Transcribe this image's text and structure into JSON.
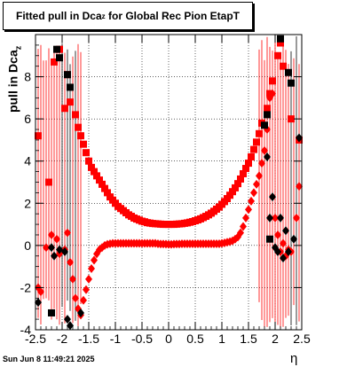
{
  "title_main": "Fitted pull in Dca",
  "title_sub": "z",
  "title_rest": "for Global Rec Pion EtapT",
  "ylabel_main": "pull in Dca",
  "ylabel_sub": "z",
  "xlabel": "η",
  "timestamp": "Sun Jun  8 11:49:21 2025",
  "colors": {
    "red": "#ff0000",
    "black": "#000000",
    "grid": "#000000"
  },
  "chart_data": {
    "type": "scatter",
    "xlim": [
      -2.5,
      2.5
    ],
    "ylim": [
      -4,
      10
    ],
    "grid": true,
    "xticks": [
      -2.5,
      -2,
      -1.5,
      -1,
      -0.5,
      0,
      0.5,
      1,
      1.5,
      2,
      2.5
    ],
    "xtick_labels": [
      "-2.5",
      "-2",
      "-1.5",
      "-1",
      "-0.5",
      "0",
      "0.5",
      "1",
      "1.5",
      "2",
      "2.5"
    ],
    "yticks": [
      -4,
      -2,
      0,
      2,
      4,
      6,
      8
    ],
    "ytick_labels": [
      "-4",
      "-2",
      "0",
      "2",
      "4",
      "6",
      "8"
    ],
    "series": [
      {
        "marker": "square",
        "color": "#ff0000",
        "points": [
          [
            -2.45,
            5.2
          ],
          [
            -2.25,
            3.0
          ],
          [
            -2.15,
            8.7
          ],
          [
            -2.05,
            9.3
          ],
          [
            -1.95,
            6.5
          ],
          [
            -1.9,
            8.1
          ],
          [
            -1.85,
            6.8
          ],
          [
            -1.75,
            6.2
          ],
          [
            -1.7,
            5.6
          ],
          [
            -1.65,
            5.2
          ],
          [
            -1.6,
            4.8
          ],
          [
            -1.55,
            4.4
          ],
          [
            -1.5,
            4.0
          ],
          [
            -1.45,
            3.7
          ],
          [
            -1.4,
            3.5
          ],
          [
            -1.35,
            3.3
          ],
          [
            -1.3,
            3.1
          ],
          [
            -1.25,
            2.9
          ],
          [
            -1.2,
            2.7
          ],
          [
            -1.15,
            2.5
          ],
          [
            -1.1,
            2.3
          ],
          [
            -1.05,
            2.15
          ],
          [
            -1.0,
            2.0
          ],
          [
            -0.95,
            1.85
          ],
          [
            -0.9,
            1.75
          ],
          [
            -0.85,
            1.65
          ],
          [
            -0.8,
            1.55
          ],
          [
            -0.75,
            1.45
          ],
          [
            -0.7,
            1.38
          ],
          [
            -0.65,
            1.3
          ],
          [
            -0.6,
            1.25
          ],
          [
            -0.55,
            1.2
          ],
          [
            -0.5,
            1.15
          ],
          [
            -0.45,
            1.12
          ],
          [
            -0.4,
            1.08
          ],
          [
            -0.35,
            1.06
          ],
          [
            -0.3,
            1.04
          ],
          [
            -0.25,
            1.03
          ],
          [
            -0.2,
            1.02
          ],
          [
            -0.15,
            1.01
          ],
          [
            -0.1,
            1.0
          ],
          [
            -0.05,
            1.0
          ],
          [
            0.0,
            1.0
          ],
          [
            0.05,
            1.0
          ],
          [
            0.1,
            1.0
          ],
          [
            0.15,
            1.01
          ],
          [
            0.2,
            1.02
          ],
          [
            0.25,
            1.03
          ],
          [
            0.3,
            1.05
          ],
          [
            0.35,
            1.07
          ],
          [
            0.4,
            1.1
          ],
          [
            0.45,
            1.13
          ],
          [
            0.5,
            1.17
          ],
          [
            0.55,
            1.21
          ],
          [
            0.6,
            1.26
          ],
          [
            0.65,
            1.32
          ],
          [
            0.7,
            1.38
          ],
          [
            0.75,
            1.45
          ],
          [
            0.8,
            1.53
          ],
          [
            0.85,
            1.62
          ],
          [
            0.9,
            1.72
          ],
          [
            0.95,
            1.82
          ],
          [
            1.0,
            1.95
          ],
          [
            1.05,
            2.08
          ],
          [
            1.1,
            2.22
          ],
          [
            1.15,
            2.38
          ],
          [
            1.2,
            2.55
          ],
          [
            1.25,
            2.73
          ],
          [
            1.3,
            2.93
          ],
          [
            1.35,
            3.15
          ],
          [
            1.4,
            3.4
          ],
          [
            1.45,
            3.65
          ],
          [
            1.5,
            3.9
          ],
          [
            1.55,
            4.2
          ],
          [
            1.6,
            4.55
          ],
          [
            1.65,
            4.9
          ],
          [
            1.7,
            5.3
          ],
          [
            1.75,
            5.8
          ],
          [
            1.85,
            6.5
          ],
          [
            1.9,
            7.2
          ],
          [
            1.95,
            7.8
          ],
          [
            2.05,
            9.0
          ],
          [
            2.1,
            9.6
          ],
          [
            2.15,
            8.5
          ],
          [
            2.3,
            6.0
          ],
          [
            2.45,
            5.0
          ]
        ]
      },
      {
        "marker": "diamond",
        "color": "#ff0000",
        "points": [
          [
            -2.45,
            -2.0
          ],
          [
            -2.4,
            -2.2
          ],
          [
            -2.3,
            -0.1
          ],
          [
            -2.2,
            0.5
          ],
          [
            -2.1,
            0.3
          ],
          [
            -2.05,
            -0.4
          ],
          [
            -1.95,
            -0.2
          ],
          [
            -1.9,
            0.6
          ],
          [
            -1.85,
            -0.8
          ],
          [
            -1.8,
            -1.6
          ],
          [
            -1.75,
            -2.5
          ],
          [
            -1.7,
            -3.0
          ],
          [
            -1.65,
            -3.3
          ],
          [
            -1.6,
            -2.6
          ],
          [
            -1.55,
            -2.1
          ],
          [
            -1.5,
            -1.6
          ],
          [
            -1.45,
            -1.1
          ],
          [
            -1.4,
            -0.7
          ],
          [
            -1.35,
            -0.4
          ],
          [
            -1.3,
            -0.2
          ],
          [
            -1.25,
            -0.1
          ],
          [
            -1.2,
            0.0
          ],
          [
            -1.15,
            0.05
          ],
          [
            -1.1,
            0.08
          ],
          [
            -1.05,
            0.1
          ],
          [
            -1.0,
            0.1
          ],
          [
            -0.95,
            0.1
          ],
          [
            -0.9,
            0.1
          ],
          [
            -0.85,
            0.1
          ],
          [
            -0.8,
            0.1
          ],
          [
            -0.75,
            0.1
          ],
          [
            -0.7,
            0.1
          ],
          [
            -0.65,
            0.1
          ],
          [
            -0.6,
            0.1
          ],
          [
            -0.55,
            0.1
          ],
          [
            -0.5,
            0.1
          ],
          [
            -0.45,
            0.1
          ],
          [
            -0.4,
            0.1
          ],
          [
            -0.35,
            0.1
          ],
          [
            -0.3,
            0.1
          ],
          [
            -0.25,
            0.1
          ],
          [
            -0.2,
            0.08
          ],
          [
            -0.15,
            0.07
          ],
          [
            -0.1,
            0.07
          ],
          [
            -0.05,
            0.06
          ],
          [
            0.0,
            0.05
          ],
          [
            0.05,
            0.05
          ],
          [
            0.1,
            0.06
          ],
          [
            0.15,
            0.07
          ],
          [
            0.2,
            0.07
          ],
          [
            0.25,
            0.08
          ],
          [
            0.3,
            0.08
          ],
          [
            0.35,
            0.08
          ],
          [
            0.4,
            0.08
          ],
          [
            0.45,
            0.08
          ],
          [
            0.5,
            0.08
          ],
          [
            0.55,
            0.08
          ],
          [
            0.6,
            0.08
          ],
          [
            0.65,
            0.08
          ],
          [
            0.7,
            0.08
          ],
          [
            0.75,
            0.08
          ],
          [
            0.8,
            0.08
          ],
          [
            0.85,
            0.08
          ],
          [
            0.9,
            0.08
          ],
          [
            0.95,
            0.08
          ],
          [
            1.0,
            0.1
          ],
          [
            1.05,
            0.12
          ],
          [
            1.1,
            0.15
          ],
          [
            1.15,
            0.18
          ],
          [
            1.2,
            0.22
          ],
          [
            1.25,
            0.3
          ],
          [
            1.3,
            0.4
          ],
          [
            1.35,
            0.6
          ],
          [
            1.4,
            0.9
          ],
          [
            1.45,
            1.3
          ],
          [
            1.5,
            1.7
          ],
          [
            1.55,
            2.1
          ],
          [
            1.6,
            2.5
          ],
          [
            1.65,
            2.9
          ],
          [
            1.7,
            3.3
          ],
          [
            1.75,
            3.9
          ],
          [
            1.8,
            4.5
          ],
          [
            1.85,
            5.5
          ],
          [
            1.9,
            7.0
          ],
          [
            1.95,
            7.2
          ],
          [
            2.0,
            1.3
          ],
          [
            2.05,
            0.5
          ],
          [
            2.1,
            -0.3
          ],
          [
            2.15,
            0.1
          ],
          [
            2.2,
            -0.5
          ],
          [
            2.25,
            -0.2
          ],
          [
            2.3,
            -0.3
          ],
          [
            2.4,
            1.3
          ],
          [
            2.45,
            2.8
          ]
        ]
      },
      {
        "marker": "square",
        "color": "#000000",
        "points": [
          [
            -2.2,
            -3.2
          ],
          [
            -2.1,
            9.3
          ],
          [
            -2.05,
            8.9
          ],
          [
            -1.9,
            8.1
          ],
          [
            -1.85,
            7.5
          ],
          [
            1.8,
            5.7
          ],
          [
            1.85,
            6.2
          ],
          [
            2.1,
            9.8
          ],
          [
            2.25,
            8.2
          ],
          [
            2.3,
            7.7
          ],
          [
            1.9,
            0.3
          ]
        ]
      },
      {
        "marker": "diamond",
        "color": "#000000",
        "points": [
          [
            -2.45,
            -2.7
          ],
          [
            -2.2,
            -0.1
          ],
          [
            -2.15,
            -0.5
          ],
          [
            -2.05,
            -0.2
          ],
          [
            -1.95,
            -0.3
          ],
          [
            -1.9,
            -3.5
          ],
          [
            -1.85,
            -3.8
          ],
          [
            -1.65,
            -3.2
          ],
          [
            1.85,
            4.2
          ],
          [
            1.9,
            1.3
          ],
          [
            2.0,
            -0.1
          ],
          [
            2.05,
            -0.3
          ],
          [
            2.15,
            -0.6
          ],
          [
            2.2,
            0.7
          ],
          [
            2.25,
            -0.3
          ],
          [
            2.35,
            0.3
          ],
          [
            2.45,
            5.1
          ],
          [
            1.95,
            2.3
          ],
          [
            2.1,
            1.3
          ]
        ]
      }
    ],
    "error_bars": {
      "note": "vertical error bars at the edges",
      "x_ranges": [
        [
          -2.5,
          -1.65
        ],
        [
          1.7,
          2.5
        ]
      ]
    }
  }
}
